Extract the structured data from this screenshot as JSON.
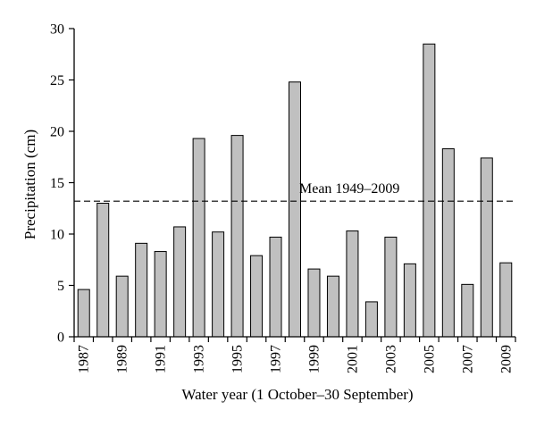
{
  "chart_data": {
    "type": "bar",
    "categories": [
      "1987",
      "1988",
      "1989",
      "1990",
      "1991",
      "1992",
      "1993",
      "1994",
      "1995",
      "1996",
      "1997",
      "1998",
      "1999",
      "2000",
      "2001",
      "2002",
      "2003",
      "2004",
      "2005",
      "2006",
      "2007",
      "2008",
      "2009"
    ],
    "values": [
      4.6,
      13.0,
      5.9,
      9.1,
      8.3,
      10.7,
      19.3,
      10.2,
      19.6,
      7.9,
      9.7,
      24.8,
      6.6,
      5.9,
      10.3,
      3.4,
      9.7,
      7.1,
      28.5,
      18.3,
      5.1,
      17.4,
      7.2
    ],
    "x_tick_labels": [
      "1987",
      "1989",
      "1991",
      "1993",
      "1995",
      "1997",
      "1999",
      "2001",
      "2003",
      "2005",
      "2007",
      "2009"
    ],
    "y_ticks": [
      0,
      5,
      10,
      15,
      20,
      25,
      30
    ],
    "ylim": [
      0,
      30
    ],
    "xlabel": "Water year (1 October–30 September)",
    "ylabel": "Precipitation (cm)",
    "mean_line": {
      "value": 13.2,
      "label": "Mean 1949–2009"
    },
    "grid": false,
    "bar_color": "#c0c0c0",
    "bar_stroke": "#000000"
  }
}
